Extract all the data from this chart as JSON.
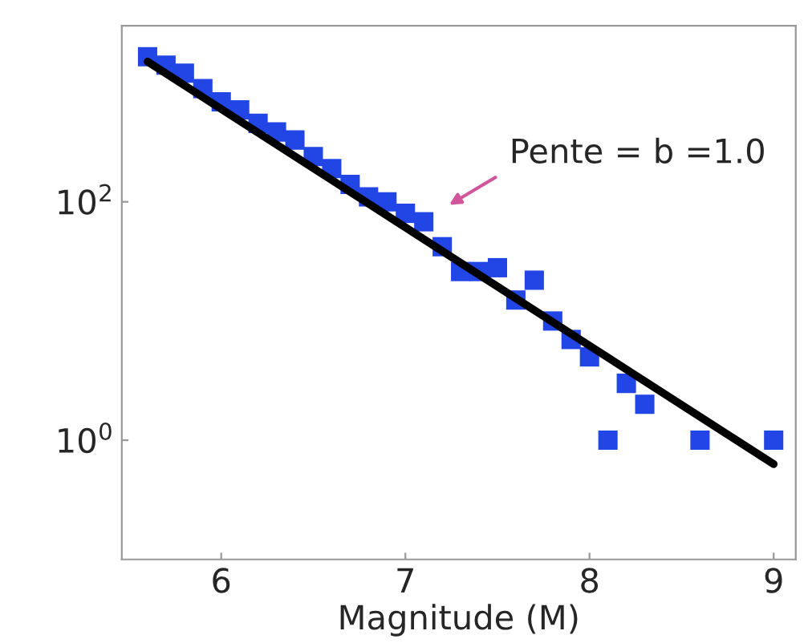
{
  "chart_data": {
    "type": "scatter",
    "xlabel": "Magnitude (M)",
    "log": "y",
    "grid": false,
    "legend": false,
    "xlim": [
      5.46,
      9.12
    ],
    "ylim": [
      0.1,
      3000
    ],
    "xticks": [
      6,
      7,
      8,
      9
    ],
    "yticks": [
      {
        "value": 1,
        "label": "10$^{0}$"
      },
      {
        "value": 100,
        "label": "10$^{2}$"
      }
    ],
    "series": [
      {
        "color": "#2245e6",
        "marker": "square",
        "x": [
          5.6,
          5.7,
          5.8,
          5.9,
          6.0,
          6.1,
          6.2,
          6.3,
          6.4,
          6.5,
          6.6,
          6.7,
          6.8,
          6.9,
          7.0,
          7.1,
          7.2,
          7.3,
          7.4,
          7.5,
          7.6,
          7.7,
          7.8,
          7.9,
          8.0,
          8.1,
          8.2,
          8.3,
          8.6,
          9.0
        ],
        "values": [
          1650,
          1400,
          1200,
          890,
          690,
          590,
          455,
          385,
          330,
          240,
          190,
          140,
          110,
          100,
          80,
          68,
          42,
          26,
          26,
          28,
          15,
          22,
          10,
          7,
          5,
          1,
          3,
          2,
          1,
          1
        ]
      },
      {
        "type": "line",
        "color": "#000000",
        "line_style": "solid",
        "marker": "none",
        "x": [
          5.6,
          9.0
        ],
        "values": [
          1500,
          0.63
        ]
      }
    ],
    "annotations": [
      "Pente = b =1.0"
    ]
  }
}
